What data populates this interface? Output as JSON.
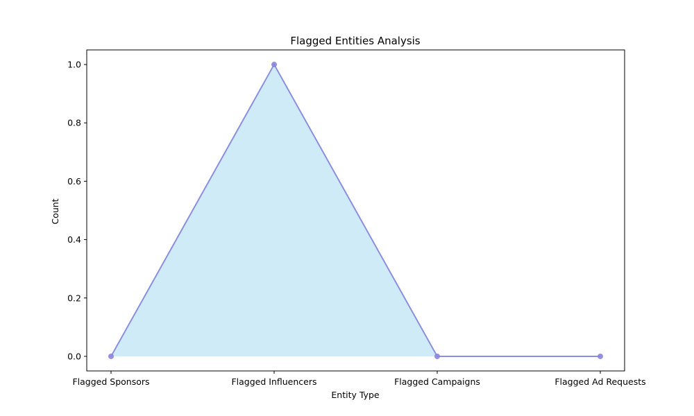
{
  "chart_data": {
    "type": "area",
    "title": "Flagged Entities Analysis",
    "xlabel": "Entity Type",
    "ylabel": "Count",
    "categories": [
      "Flagged Sponsors",
      "Flagged Influencers",
      "Flagged Campaigns",
      "Flagged Ad Requests"
    ],
    "series": [
      {
        "values": [
          0,
          1,
          0,
          0
        ]
      }
    ],
    "ylim": [
      -0.05,
      1.05
    ],
    "yticks": [
      0.0,
      0.2,
      0.4,
      0.6,
      0.8,
      1.0
    ],
    "ytick_labels": [
      "0.0",
      "0.2",
      "0.4",
      "0.6",
      "0.8",
      "1.0"
    ],
    "fill_range": [
      0,
      2
    ],
    "grid": false,
    "colors": {
      "line": "#8b8fe0",
      "marker": "#8b84de",
      "fill": "#87ceeb"
    }
  }
}
